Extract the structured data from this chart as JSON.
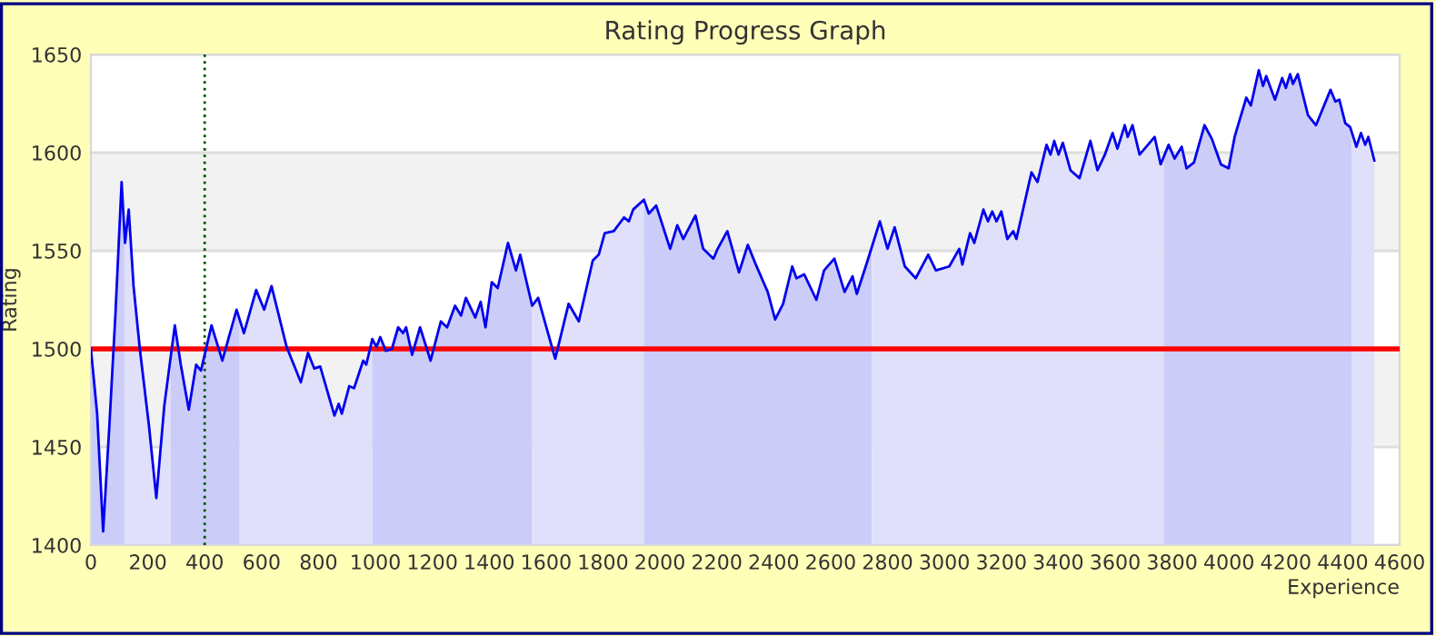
{
  "chart_data": {
    "type": "line",
    "title": "Rating Progress Graph",
    "xlabel": "Experience",
    "ylabel": "Rating",
    "xlim": [
      0,
      4600
    ],
    "xticks": [
      0,
      200,
      400,
      600,
      800,
      1000,
      1200,
      1400,
      1600,
      1800,
      2000,
      2200,
      2400,
      2600,
      2800,
      3000,
      3200,
      3400,
      3600,
      3800,
      4000,
      4200,
      4400,
      4600
    ],
    "ylim": [
      1400,
      1650
    ],
    "yticks": [
      1400,
      1450,
      1500,
      1550,
      1600,
      1650
    ],
    "grid": "y",
    "legend": false,
    "marker": "none",
    "line_style": "solid",
    "series": [
      {
        "type": "area",
        "color": "#ccccf8",
        "x": [
          0,
          22,
          43,
          65,
          86,
          108,
          118
        ],
        "values": [
          1500,
          1467,
          1407,
          1461,
          1517,
          1585,
          1560
        ]
      },
      {
        "type": "area",
        "color": "#e0e0fa",
        "x": [
          118,
          120,
          133,
          150,
          172,
          204,
          230,
          258,
          280
        ],
        "values": [
          1560,
          1554,
          1571,
          1532,
          1500,
          1461,
          1424,
          1471,
          1495
        ]
      },
      {
        "type": "area",
        "color": "#ccccf8",
        "x": [
          280,
          295,
          316,
          344,
          370,
          387,
          424,
          462,
          512,
          523
        ],
        "values": [
          1495,
          1512,
          1492,
          1469,
          1492,
          1489,
          1512,
          1494,
          1520,
          1515
        ]
      },
      {
        "type": "area",
        "color": "#e0e0fa",
        "x": [
          523,
          538,
          581,
          609,
          635,
          688,
          738,
          763,
          785,
          806,
          856,
          871,
          882,
          908,
          925,
          957,
          968,
          989
        ],
        "values": [
          1515,
          1508,
          1530,
          1520,
          1532,
          1501,
          1483,
          1498,
          1490,
          1491,
          1466,
          1472,
          1467,
          1481,
          1480,
          1494,
          1492,
          1505
        ]
      },
      {
        "type": "area",
        "color": "#ccccf8",
        "x": [
          989,
          1004,
          1017,
          1037,
          1058,
          1080,
          1097,
          1108,
          1129,
          1157,
          1194,
          1230,
          1252,
          1280,
          1301,
          1318,
          1351,
          1370,
          1387,
          1409,
          1430,
          1466,
          1494,
          1509,
          1551
        ],
        "values": [
          1505,
          1501,
          1506,
          1499,
          1500,
          1511,
          1508,
          1511,
          1497,
          1511,
          1494,
          1514,
          1511,
          1522,
          1517,
          1526,
          1516,
          1524,
          1511,
          1534,
          1531,
          1554,
          1540,
          1548,
          1522
        ]
      },
      {
        "type": "area",
        "color": "#e0e0fa",
        "x": [
          1551,
          1572,
          1632,
          1679,
          1715,
          1764,
          1785,
          1806,
          1838,
          1874,
          1891,
          1906,
          1944
        ],
        "values": [
          1522,
          1526,
          1495,
          1523,
          1514,
          1545,
          1548,
          1559,
          1560,
          1567,
          1565,
          1571,
          1576
        ]
      },
      {
        "type": "area",
        "color": "#ccccf8",
        "x": [
          1944,
          1961,
          1987,
          2036,
          2061,
          2082,
          2125,
          2152,
          2188,
          2203,
          2237,
          2278,
          2309,
          2337,
          2379,
          2405,
          2433,
          2465,
          2480,
          2507,
          2550,
          2577,
          2613,
          2649,
          2677,
          2692,
          2730,
          2745
        ],
        "values": [
          1576,
          1569,
          1573,
          1551,
          1563,
          1556,
          1568,
          1551,
          1546,
          1551,
          1560,
          1539,
          1553,
          1543,
          1529,
          1515,
          1523,
          1542,
          1536,
          1538,
          1525,
          1540,
          1546,
          1529,
          1537,
          1528,
          1545,
          1552
        ]
      },
      {
        "type": "area",
        "color": "#e0e0fa",
        "x": [
          2745,
          2773,
          2800,
          2825,
          2861,
          2899,
          2943,
          2970,
          3017,
          3052,
          3063,
          3090,
          3105,
          3137,
          3153,
          3168,
          3183,
          3200,
          3221,
          3242,
          3253,
          3306,
          3327,
          3359,
          3373,
          3386,
          3401,
          3416,
          3443,
          3475,
          3513,
          3538,
          3564,
          3591,
          3608,
          3634,
          3644,
          3661,
          3686,
          3739,
          3760,
          3771
        ],
        "values": [
          1552,
          1565,
          1551,
          1562,
          1542,
          1536,
          1548,
          1540,
          1542,
          1551,
          1543,
          1559,
          1554,
          1571,
          1565,
          1570,
          1565,
          1570,
          1556,
          1560,
          1556,
          1590,
          1585,
          1604,
          1599,
          1606,
          1599,
          1605,
          1591,
          1587,
          1606,
          1591,
          1599,
          1610,
          1602,
          1614,
          1608,
          1614,
          1599,
          1608,
          1594,
          1598
        ]
      },
      {
        "type": "area",
        "color": "#ccccf8",
        "x": [
          3771,
          3788,
          3809,
          3834,
          3851,
          3877,
          3914,
          3940,
          3972,
          3999,
          4020,
          4061,
          4077,
          4105,
          4120,
          4131,
          4162,
          4187,
          4200,
          4215,
          4225,
          4242,
          4278,
          4306,
          4357,
          4374,
          4388,
          4409,
          4426,
          4431
        ],
        "values": [
          1598,
          1604,
          1597,
          1603,
          1592,
          1595,
          1614,
          1607,
          1594,
          1592,
          1608,
          1628,
          1624,
          1642,
          1634,
          1639,
          1627,
          1638,
          1633,
          1640,
          1635,
          1640,
          1619,
          1614,
          1632,
          1626,
          1627,
          1615,
          1613,
          1611
        ]
      },
      {
        "type": "area",
        "color": "#e0e0fa",
        "x": [
          4431,
          4448,
          4464,
          4479,
          4490,
          4511
        ],
        "values": [
          1611,
          1603,
          1610,
          1604,
          1608,
          1596
        ]
      },
      {
        "color": "#0000ee",
        "x": [
          0,
          22,
          43,
          65,
          86,
          108,
          120,
          133,
          150,
          172,
          204,
          230,
          258,
          295,
          316,
          344,
          370,
          387,
          424,
          462,
          512,
          538,
          581,
          609,
          635,
          688,
          738,
          763,
          785,
          806,
          856,
          871,
          882,
          908,
          925,
          957,
          968,
          989,
          1004,
          1017,
          1037,
          1058,
          1080,
          1097,
          1108,
          1129,
          1157,
          1194,
          1230,
          1252,
          1280,
          1301,
          1318,
          1351,
          1370,
          1387,
          1409,
          1430,
          1466,
          1494,
          1509,
          1551,
          1572,
          1632,
          1679,
          1715,
          1764,
          1785,
          1806,
          1838,
          1874,
          1891,
          1906,
          1944,
          1961,
          1987,
          2036,
          2061,
          2082,
          2125,
          2152,
          2188,
          2203,
          2237,
          2278,
          2309,
          2337,
          2379,
          2405,
          2433,
          2465,
          2480,
          2507,
          2550,
          2577,
          2613,
          2649,
          2677,
          2692,
          2730,
          2773,
          2800,
          2825,
          2861,
          2899,
          2943,
          2970,
          3017,
          3052,
          3063,
          3090,
          3105,
          3137,
          3153,
          3168,
          3183,
          3200,
          3221,
          3242,
          3253,
          3306,
          3327,
          3359,
          3373,
          3386,
          3401,
          3416,
          3443,
          3475,
          3513,
          3538,
          3564,
          3591,
          3608,
          3634,
          3644,
          3661,
          3686,
          3739,
          3760,
          3788,
          3809,
          3834,
          3851,
          3877,
          3914,
          3940,
          3972,
          3999,
          4020,
          4061,
          4077,
          4105,
          4120,
          4131,
          4162,
          4187,
          4200,
          4215,
          4225,
          4242,
          4278,
          4306,
          4357,
          4374,
          4388,
          4409,
          4426,
          4448,
          4464,
          4479,
          4490,
          4511
        ],
        "values": [
          1500,
          1467,
          1407,
          1461,
          1517,
          1585,
          1554,
          1571,
          1532,
          1500,
          1461,
          1424,
          1471,
          1512,
          1492,
          1469,
          1492,
          1489,
          1512,
          1494,
          1520,
          1508,
          1530,
          1520,
          1532,
          1501,
          1483,
          1498,
          1490,
          1491,
          1466,
          1472,
          1467,
          1481,
          1480,
          1494,
          1492,
          1505,
          1501,
          1506,
          1499,
          1500,
          1511,
          1508,
          1511,
          1497,
          1511,
          1494,
          1514,
          1511,
          1522,
          1517,
          1526,
          1516,
          1524,
          1511,
          1534,
          1531,
          1554,
          1540,
          1548,
          1522,
          1526,
          1495,
          1523,
          1514,
          1545,
          1548,
          1559,
          1560,
          1567,
          1565,
          1571,
          1576,
          1569,
          1573,
          1551,
          1563,
          1556,
          1568,
          1551,
          1546,
          1551,
          1560,
          1539,
          1553,
          1543,
          1529,
          1515,
          1523,
          1542,
          1536,
          1538,
          1525,
          1540,
          1546,
          1529,
          1537,
          1528,
          1545,
          1565,
          1551,
          1562,
          1542,
          1536,
          1548,
          1540,
          1542,
          1551,
          1543,
          1559,
          1554,
          1571,
          1565,
          1570,
          1565,
          1570,
          1556,
          1560,
          1556,
          1590,
          1585,
          1604,
          1599,
          1606,
          1599,
          1605,
          1591,
          1587,
          1606,
          1591,
          1599,
          1610,
          1602,
          1614,
          1608,
          1614,
          1599,
          1608,
          1594,
          1604,
          1597,
          1603,
          1592,
          1595,
          1614,
          1607,
          1594,
          1592,
          1608,
          1628,
          1624,
          1642,
          1634,
          1639,
          1627,
          1638,
          1633,
          1640,
          1635,
          1640,
          1619,
          1614,
          1632,
          1626,
          1627,
          1615,
          1613,
          1603,
          1610,
          1604,
          1608,
          1596
        ]
      }
    ],
    "bands": [
      {
        "axis": "y",
        "from": 1450,
        "to": 1500,
        "color": "#f2f2f2"
      },
      {
        "axis": "y",
        "from": 1550,
        "to": 1600,
        "color": "#f2f2f2"
      }
    ],
    "ref_lines": [
      {
        "axis": "y",
        "value": 1500,
        "color": "#ff0000",
        "line_style": "solid"
      },
      {
        "axis": "x",
        "value": 400,
        "color": "#005500",
        "line_style": "dotted"
      }
    ]
  }
}
